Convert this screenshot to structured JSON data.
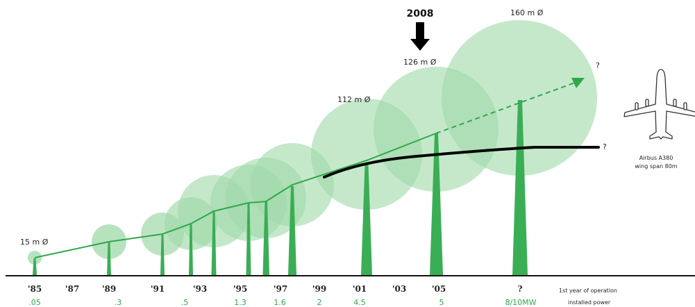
{
  "colors": {
    "rotor": "#9fd8a8",
    "tower": "#3aae55",
    "growth_line": "#2ea84a",
    "axis": "#111111",
    "plateau_line": "#000000",
    "power_text": "#2ea84a"
  },
  "highlight": {
    "year": "2008"
  },
  "diameters": {
    "d15": "15 m Ø",
    "d112": "112 m Ø",
    "d126": "126 m Ø",
    "d160": "160 m Ø"
  },
  "question_marks": {
    "top": "?",
    "plateau": "?"
  },
  "airplane": {
    "icon": "airplane-icon",
    "line1": "Airbus A380",
    "line2": "wing span 80m"
  },
  "legend": {
    "line1": "1st year of operation",
    "line2": "installed power"
  },
  "timeline": {
    "years": [
      "'85",
      "'87",
      "'89",
      "'91",
      "'93",
      "'95",
      "'97",
      "'99",
      "'01",
      "'03",
      "'05",
      "?"
    ],
    "powers": [
      ".05",
      ".3",
      ".5",
      "1.3",
      "1.6",
      "2",
      "4.5",
      "5",
      "8/10MW"
    ]
  }
}
